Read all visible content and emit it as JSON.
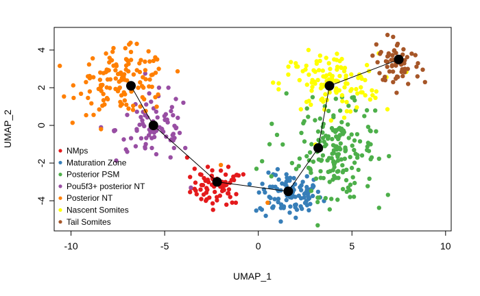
{
  "chart_data": {
    "type": "scatter",
    "title": "",
    "xlabel": "UMAP_1",
    "ylabel": "UMAP_2",
    "xlim": [
      -10.9,
      10.3
    ],
    "ylim": [
      -5.6,
      5.2
    ],
    "xticks": [
      -10,
      -5,
      0,
      5,
      10
    ],
    "yticks": [
      -4,
      -2,
      0,
      2,
      4
    ],
    "xtick_labels": [
      "-10",
      "-5",
      "0",
      "5",
      "10"
    ],
    "ytick_labels": [
      "-4",
      "-2",
      "0",
      "2",
      "4"
    ],
    "grid": false,
    "legend_position": "bottom-left",
    "series": [
      {
        "name": "NMps",
        "color": "#e41a1c",
        "center": [
          -2.2,
          -3.3
        ],
        "spread": [
          0.7,
          0.45
        ],
        "count": 60,
        "points": [
          [
            -3.8,
            -1.7
          ],
          [
            -3.4,
            -2.3
          ],
          [
            -2.9,
            -2.8
          ],
          [
            -2.7,
            -2.2
          ],
          [
            -3.1,
            -2.6
          ],
          [
            -1.6,
            -2.2
          ],
          [
            -1.3,
            -2.9
          ],
          [
            -2.0,
            -2.4
          ],
          [
            -1.5,
            -3.8
          ],
          [
            -2.8,
            -4.0
          ],
          [
            -1.2,
            -4.1
          ],
          [
            -0.8,
            -2.6
          ]
        ]
      },
      {
        "name": "Maturation Zone",
        "color": "#377eb8",
        "center": [
          1.6,
          -3.7
        ],
        "spread": [
          0.9,
          0.55
        ],
        "count": 90,
        "points": [
          [
            0.4,
            -4.8
          ],
          [
            1.2,
            -5.1
          ],
          [
            0.1,
            -4.4
          ],
          [
            2.7,
            -4.5
          ],
          [
            2.0,
            -4.9
          ],
          [
            0.8,
            -2.6
          ],
          [
            1.9,
            -2.8
          ],
          [
            2.6,
            -2.7
          ],
          [
            2.9,
            -3.3
          ],
          [
            1.5,
            -2.6
          ],
          [
            0.3,
            -3.4
          ]
        ]
      },
      {
        "name": "Posterior PSM",
        "color": "#4daf4a",
        "center": [
          4.2,
          -1.3
        ],
        "spread": [
          1.0,
          1.2
        ],
        "count": 170,
        "points": [
          [
            1.5,
            1.7
          ],
          [
            1.0,
            -0.5
          ],
          [
            0.6,
            -1.0
          ],
          [
            0.2,
            -1.9
          ],
          [
            -0.1,
            -2.3
          ],
          [
            0.7,
            -2.7
          ],
          [
            3.9,
            -3.9
          ],
          [
            4.9,
            -3.8
          ],
          [
            6.0,
            -0.3
          ],
          [
            5.8,
            0.8
          ],
          [
            5.2,
            0.8
          ],
          [
            2.6,
            0.9
          ],
          [
            2.9,
            1.5
          ],
          [
            4.8,
            -3.3
          ],
          [
            1.8,
            -2.0
          ],
          [
            2.3,
            -0.4
          ]
        ]
      },
      {
        "name": "Pou5f3+ posterior NT",
        "color": "#984ea3",
        "center": [
          -5.6,
          -0.2
        ],
        "spread": [
          1.0,
          0.9
        ],
        "count": 70,
        "points": [
          [
            -4.8,
            2.0
          ],
          [
            -4.4,
            1.4
          ],
          [
            -4.3,
            0.4
          ],
          [
            -5.3,
            2.0
          ],
          [
            -7.7,
            -0.3
          ],
          [
            -8.4,
            -0.1
          ],
          [
            -7.0,
            -1.4
          ],
          [
            -4.5,
            -1.2
          ],
          [
            -3.6,
            -3.3
          ],
          [
            -3.9,
            -1.2
          ],
          [
            -4.2,
            -0.4
          ]
        ]
      },
      {
        "name": "Posterior NT",
        "color": "#ff7f00",
        "center": [
          -7.2,
          2.3
        ],
        "spread": [
          1.2,
          0.85
        ],
        "count": 120,
        "points": [
          [
            -6.9,
            4.3
          ],
          [
            -7.1,
            4.1
          ],
          [
            -6.8,
            3.9
          ],
          [
            -9.2,
            2.3
          ],
          [
            -9.0,
            1.8
          ],
          [
            -9.1,
            2.6
          ],
          [
            -8.4,
            -0.2
          ],
          [
            -6.3,
            1.0
          ],
          [
            -5.5,
            1.5
          ],
          [
            -2.0,
            -2.1
          ],
          [
            0.5,
            -4.1
          ]
        ]
      },
      {
        "name": "Nascent Somites",
        "color": "#ffff00",
        "center": [
          3.8,
          2.2
        ],
        "spread": [
          1.3,
          0.8
        ],
        "count": 110,
        "points": [
          [
            2.2,
            2.4
          ],
          [
            2.0,
            3.3
          ],
          [
            3.3,
            3.7
          ],
          [
            4.2,
            3.8
          ],
          [
            5.4,
            2.7
          ],
          [
            6.1,
            1.6
          ],
          [
            6.3,
            1.8
          ],
          [
            1.6,
            2.7
          ],
          [
            5.8,
            3.2
          ]
        ]
      },
      {
        "name": "Tail Somites",
        "color": "#a65628",
        "center": [
          7.5,
          3.3
        ],
        "spread": [
          0.6,
          0.55
        ],
        "count": 60,
        "points": [
          [
            6.3,
            4.3
          ],
          [
            6.5,
            3.8
          ],
          [
            6.9,
            4.8
          ],
          [
            7.2,
            4.7
          ],
          [
            8.9,
            2.3
          ],
          [
            8.5,
            2.6
          ],
          [
            8.0,
            2.2
          ],
          [
            7.2,
            2.3
          ],
          [
            6.1,
            3.7
          ]
        ]
      }
    ],
    "trajectory": {
      "x": [
        -6.8,
        -5.6,
        -2.2,
        1.6,
        3.2,
        3.8,
        7.5
      ],
      "y": [
        2.1,
        0.0,
        -3.0,
        -3.5,
        -1.2,
        2.1,
        3.5
      ],
      "color": "#000000"
    }
  }
}
